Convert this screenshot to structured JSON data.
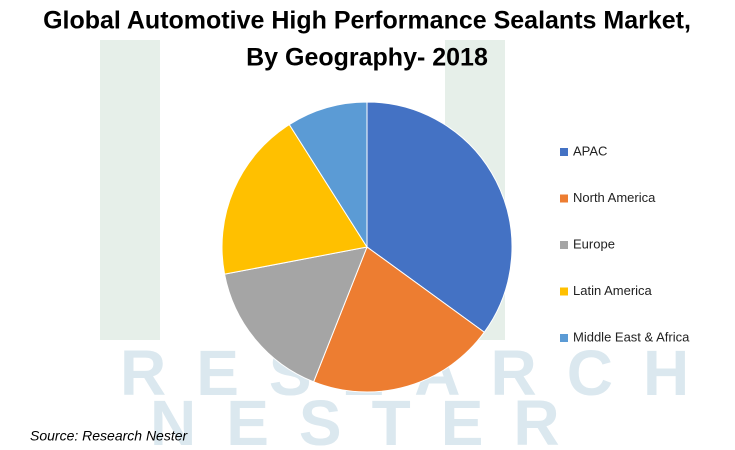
{
  "chart_data": {
    "type": "pie",
    "title": [
      "Global Automotive High Performance Sealants Market,",
      "By Geography- 2018"
    ],
    "categories": [
      "APAC",
      "North America",
      "Europe",
      "Latin America",
      "Middle East & Africa"
    ],
    "values": [
      35,
      21,
      16,
      19,
      9
    ],
    "colors": [
      "#4472c4",
      "#ed7d31",
      "#a5a5a5",
      "#ffc000",
      "#5b9bd5"
    ],
    "legend": "right",
    "watermark": [
      "RESEARCH",
      "NESTER"
    ],
    "source": "Source: Research Nester"
  }
}
